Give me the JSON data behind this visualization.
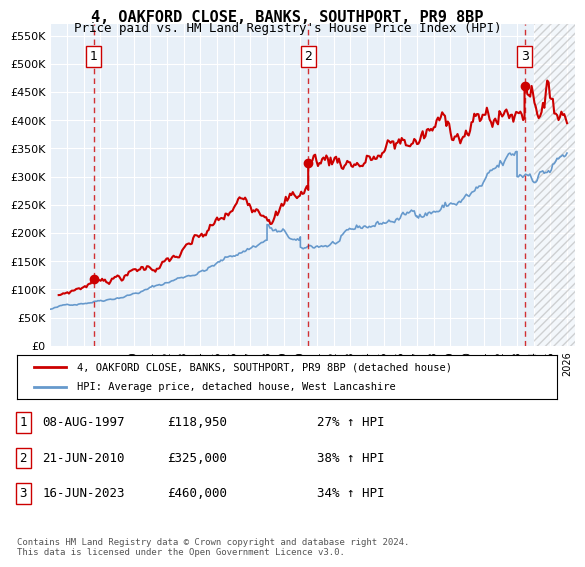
{
  "title": "4, OAKFORD CLOSE, BANKS, SOUTHPORT, PR9 8BP",
  "subtitle": "Price paid vs. HM Land Registry's House Price Index (HPI)",
  "ytick_values": [
    0,
    50000,
    100000,
    150000,
    200000,
    250000,
    300000,
    350000,
    400000,
    450000,
    500000,
    550000
  ],
  "xmin": 1995.0,
  "xmax": 2026.5,
  "ymin": 0,
  "ymax": 570000,
  "sale_dates": [
    1997.6,
    2010.47,
    2023.45
  ],
  "sale_prices": [
    118950,
    325000,
    460000
  ],
  "sale_labels": [
    "1",
    "2",
    "3"
  ],
  "red_line_color": "#cc0000",
  "blue_line_color": "#6699cc",
  "bg_color": "#e8f0f8",
  "hatch_start": 2024.0,
  "legend_entries": [
    "4, OAKFORD CLOSE, BANKS, SOUTHPORT, PR9 8BP (detached house)",
    "HPI: Average price, detached house, West Lancashire"
  ],
  "table_data": [
    [
      "1",
      "08-AUG-1997",
      "£118,950",
      "27% ↑ HPI"
    ],
    [
      "2",
      "21-JUN-2010",
      "£325,000",
      "38% ↑ HPI"
    ],
    [
      "3",
      "16-JUN-2023",
      "£460,000",
      "34% ↑ HPI"
    ]
  ],
  "footer": "Contains HM Land Registry data © Crown copyright and database right 2024.\nThis data is licensed under the Open Government Licence v3.0.",
  "xtick_years": [
    1995,
    1996,
    1997,
    1998,
    1999,
    2000,
    2001,
    2002,
    2003,
    2004,
    2005,
    2006,
    2007,
    2008,
    2009,
    2010,
    2011,
    2012,
    2013,
    2014,
    2015,
    2016,
    2017,
    2018,
    2019,
    2020,
    2021,
    2022,
    2023,
    2024,
    2025,
    2026
  ]
}
